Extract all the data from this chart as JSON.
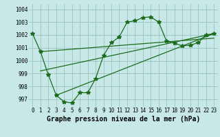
{
  "title": "Graphe pression niveau de la mer (hPa)",
  "bg_color": "#c8e8e8",
  "grid_color": "#a0c8c8",
  "line_color": "#1a6b1a",
  "xlim": [
    -0.5,
    23.5
  ],
  "ylim": [
    996.4,
    1004.4
  ],
  "yticks": [
    997,
    998,
    999,
    1000,
    1001,
    1002,
    1003,
    1004
  ],
  "xticks": [
    0,
    1,
    2,
    3,
    4,
    5,
    6,
    7,
    8,
    9,
    10,
    11,
    12,
    13,
    14,
    15,
    16,
    17,
    18,
    19,
    20,
    21,
    22,
    23
  ],
  "main_x": [
    0,
    1,
    2,
    3,
    4,
    5,
    6,
    7,
    8,
    9,
    10,
    11,
    12,
    13,
    14,
    15,
    16,
    17,
    18,
    19,
    20,
    21,
    22,
    23
  ],
  "main_y": [
    1002.1,
    1000.7,
    998.9,
    997.3,
    996.8,
    996.7,
    997.5,
    997.5,
    998.6,
    1000.4,
    1001.4,
    1001.85,
    1003.0,
    1003.1,
    1003.35,
    1003.4,
    1003.0,
    1001.5,
    1001.35,
    1001.15,
    1001.2,
    1001.4,
    1002.0,
    1002.1
  ],
  "trend1_x": [
    1,
    23
  ],
  "trend1_y": [
    1000.7,
    1001.75
  ],
  "trend2_x": [
    1,
    23
  ],
  "trend2_y": [
    999.2,
    1002.1
  ],
  "trend3_x": [
    3,
    23
  ],
  "trend3_y": [
    997.3,
    1002.1
  ],
  "tick_fontsize": 5.5,
  "title_fontsize": 7.0
}
